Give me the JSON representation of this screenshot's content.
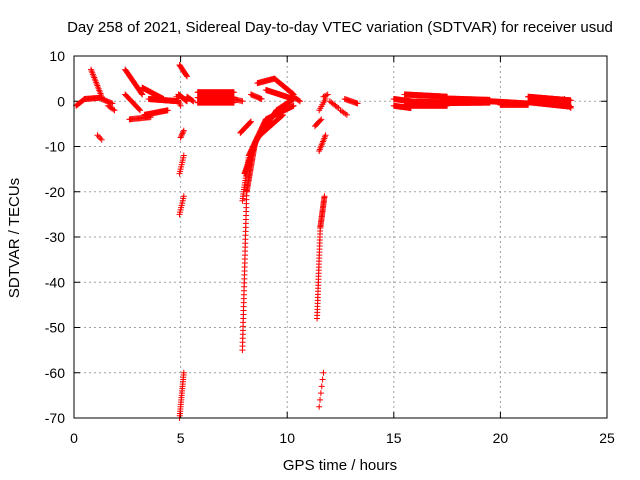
{
  "chart_data": {
    "type": "scatter",
    "title": "Day 258 of 2021, Sidereal Day-to-day VTEC variation (SDTVAR) for receiver usud",
    "xlabel": "GPS time / hours",
    "ylabel": "SDTVAR / TECUs",
    "xlim": [
      0,
      25
    ],
    "ylim": [
      -70,
      10
    ],
    "xticks": [
      0,
      5,
      10,
      15,
      20,
      25
    ],
    "yticks": [
      10,
      0,
      -10,
      -20,
      -30,
      -40,
      -50,
      -60,
      -70
    ],
    "grid": true,
    "marker": "+",
    "color": "#ff0000",
    "series": [
      {
        "name": "SDTVAR",
        "segments": [
          {
            "x0": 0.1,
            "x1": 0.5,
            "y0": -1.0,
            "y1": 0.5,
            "step": 0.04
          },
          {
            "x0": 0.5,
            "x1": 1.3,
            "y0": 0.5,
            "y1": 0.8,
            "step": 0.04
          },
          {
            "x0": 0.8,
            "x1": 1.3,
            "y0": 7.0,
            "y1": 1.0,
            "step": 0.03
          },
          {
            "x0": 1.1,
            "x1": 1.3,
            "y0": -7.5,
            "y1": -8.5,
            "step": 0.06
          },
          {
            "x0": 1.3,
            "x1": 1.8,
            "y0": 0.5,
            "y1": -0.5,
            "step": 0.05
          },
          {
            "x0": 1.6,
            "x1": 1.9,
            "y0": -1.0,
            "y1": -2.0,
            "step": 0.06
          },
          {
            "x0": 2.4,
            "x1": 3.2,
            "y0": 7.0,
            "y1": 1.5,
            "step": 0.03
          },
          {
            "x0": 2.4,
            "x1": 3.1,
            "y0": 1.5,
            "y1": -2.0,
            "step": 0.04
          },
          {
            "x0": 2.6,
            "x1": 3.6,
            "y0": -4.0,
            "y1": -3.5,
            "step": 0.05
          },
          {
            "x0": 3.2,
            "x1": 4.2,
            "y0": 3.0,
            "y1": 0.5,
            "step": 0.03
          },
          {
            "x0": 3.3,
            "x1": 4.4,
            "y0": -3.0,
            "y1": -2.0,
            "step": 0.04
          },
          {
            "x0": 3.5,
            "x1": 4.9,
            "y0": 0.5,
            "y1": 0.0,
            "step": 0.02
          },
          {
            "x0": 4.9,
            "x1": 5.3,
            "y0": 1.5,
            "y1": 0.0,
            "step": 0.02
          },
          {
            "x0": 4.8,
            "x1": 5.0,
            "y0": 1.0,
            "y1": -1.0,
            "step": 0.04
          },
          {
            "x0": 4.95,
            "x1": 5.3,
            "y0": 8.0,
            "y1": 5.5,
            "step": 0.03
          },
          {
            "x0": 5.3,
            "x1": 5.6,
            "y0": 1.0,
            "y1": 0.0,
            "step": 0.04
          },
          {
            "x0": 5.0,
            "x1": 5.15,
            "y0": -8.0,
            "y1": -6.5,
            "step": 0.03
          },
          {
            "x0": 4.95,
            "x1": 5.15,
            "y0": -16.0,
            "y1": -12.0,
            "step": 0.025
          },
          {
            "x0": 4.95,
            "x1": 5.15,
            "y0": -25.0,
            "y1": -21.0,
            "step": 0.025
          },
          {
            "x0": 4.95,
            "x1": 5.15,
            "y0": -70.0,
            "y1": -60.0,
            "step": 0.01
          },
          {
            "x0": 5.8,
            "x1": 7.5,
            "y0": 2.0,
            "y1": 2.0,
            "step": 0.03
          },
          {
            "x0": 5.8,
            "x1": 7.5,
            "y0": 0.8,
            "y1": 0.8,
            "step": 0.03
          },
          {
            "x0": 5.8,
            "x1": 7.5,
            "y0": -0.3,
            "y1": -0.3,
            "step": 0.03
          },
          {
            "x0": 7.5,
            "x1": 7.9,
            "y0": 0.5,
            "y1": 0.0,
            "step": 0.06
          },
          {
            "x0": 8.3,
            "x1": 8.8,
            "y0": 1.5,
            "y1": 0.5,
            "step": 0.05
          },
          {
            "x0": 8.6,
            "x1": 9.4,
            "y0": 4.0,
            "y1": 5.0,
            "step": 0.04
          },
          {
            "x0": 9.4,
            "x1": 10.3,
            "y0": 5.0,
            "y1": 1.5,
            "step": 0.03
          },
          {
            "x0": 9.0,
            "x1": 10.3,
            "y0": 2.5,
            "y1": 0.5,
            "step": 0.03
          },
          {
            "x0": 10.3,
            "x1": 10.6,
            "y0": 1.0,
            "y1": 0.0,
            "step": 0.05
          },
          {
            "x0": 7.9,
            "x1": 8.1,
            "y0": -55.0,
            "y1": -20.0,
            "step": 0.005
          },
          {
            "x0": 8.1,
            "x1": 8.5,
            "y0": -20.0,
            "y1": -9.0,
            "step": 0.01
          },
          {
            "x0": 8.5,
            "x1": 9.5,
            "y0": -9.0,
            "y1": -2.0,
            "step": 0.02
          },
          {
            "x0": 9.5,
            "x1": 10.3,
            "y0": -2.0,
            "y1": 0.5,
            "step": 0.03
          },
          {
            "x0": 7.9,
            "x1": 8.2,
            "y0": -22.0,
            "y1": -12.0,
            "step": 0.015
          },
          {
            "x0": 8.2,
            "x1": 9.0,
            "y0": -12.0,
            "y1": -4.0,
            "step": 0.02
          },
          {
            "x0": 9.0,
            "x1": 10.3,
            "y0": -4.0,
            "y1": -1.0,
            "step": 0.03
          },
          {
            "x0": 8.0,
            "x1": 8.6,
            "y0": -16.0,
            "y1": -8.0,
            "step": 0.015
          },
          {
            "x0": 8.6,
            "x1": 9.8,
            "y0": -8.0,
            "y1": -3.0,
            "step": 0.025
          },
          {
            "x0": 7.8,
            "x1": 8.3,
            "y0": -7.0,
            "y1": -4.5,
            "step": 0.03
          },
          {
            "x0": 11.4,
            "x1": 11.55,
            "y0": -48.0,
            "y1": -28.0,
            "step": 0.005
          },
          {
            "x0": 11.55,
            "x1": 11.75,
            "y0": -28.0,
            "y1": -21.0,
            "step": 0.008
          },
          {
            "x0": 11.5,
            "x1": 11.7,
            "y0": -67.5,
            "y1": -60.0,
            "step": 0.04
          },
          {
            "x0": 11.5,
            "x1": 11.8,
            "y0": -11.0,
            "y1": -7.5,
            "step": 0.03
          },
          {
            "x0": 11.3,
            "x1": 11.6,
            "y0": -5.5,
            "y1": -4.0,
            "step": 0.05
          },
          {
            "x0": 11.5,
            "x1": 11.8,
            "y0": -2.0,
            "y1": 0.5,
            "step": 0.05
          },
          {
            "x0": 11.7,
            "x1": 11.9,
            "y0": 1.0,
            "y1": 1.5,
            "step": 0.08
          },
          {
            "x0": 12.0,
            "x1": 12.4,
            "y0": 0.0,
            "y1": -1.5,
            "step": 0.07
          },
          {
            "x0": 12.5,
            "x1": 12.8,
            "y0": -2.0,
            "y1": -3.0,
            "step": 0.07
          },
          {
            "x0": 12.7,
            "x1": 13.3,
            "y0": 0.5,
            "y1": -0.5,
            "step": 0.05
          },
          {
            "x0": 15.0,
            "x1": 15.8,
            "y0": 0.5,
            "y1": 0.0,
            "step": 0.03
          },
          {
            "x0": 15.0,
            "x1": 15.8,
            "y0": -1.0,
            "y1": -1.5,
            "step": 0.03
          },
          {
            "x0": 15.5,
            "x1": 17.5,
            "y0": 1.5,
            "y1": 1.0,
            "step": 0.025
          },
          {
            "x0": 15.5,
            "x1": 17.5,
            "y0": 0.0,
            "y1": -0.3,
            "step": 0.025
          },
          {
            "x0": 15.5,
            "x1": 17.5,
            "y0": -1.0,
            "y1": -1.0,
            "step": 0.03
          },
          {
            "x0": 17.5,
            "x1": 19.5,
            "y0": 0.6,
            "y1": 0.3,
            "step": 0.03
          },
          {
            "x0": 17.5,
            "x1": 19.5,
            "y0": -0.4,
            "y1": -0.3,
            "step": 0.03
          },
          {
            "x0": 19.5,
            "x1": 21.3,
            "y0": 0.0,
            "y1": -0.5,
            "step": 0.03
          },
          {
            "x0": 20.0,
            "x1": 21.3,
            "y0": -0.8,
            "y1": -0.8,
            "step": 0.04
          },
          {
            "x0": 21.3,
            "x1": 23.3,
            "y0": 1.0,
            "y1": 0.2,
            "step": 0.025
          },
          {
            "x0": 21.3,
            "x1": 23.3,
            "y0": -0.2,
            "y1": -1.2,
            "step": 0.025
          },
          {
            "x0": 21.5,
            "x1": 23.0,
            "y0": 0.3,
            "y1": 0.3,
            "step": 0.04
          },
          {
            "x0": 23.0,
            "x1": 23.3,
            "y0": 0.5,
            "y1": -1.5,
            "step": 0.04
          }
        ]
      }
    ]
  }
}
